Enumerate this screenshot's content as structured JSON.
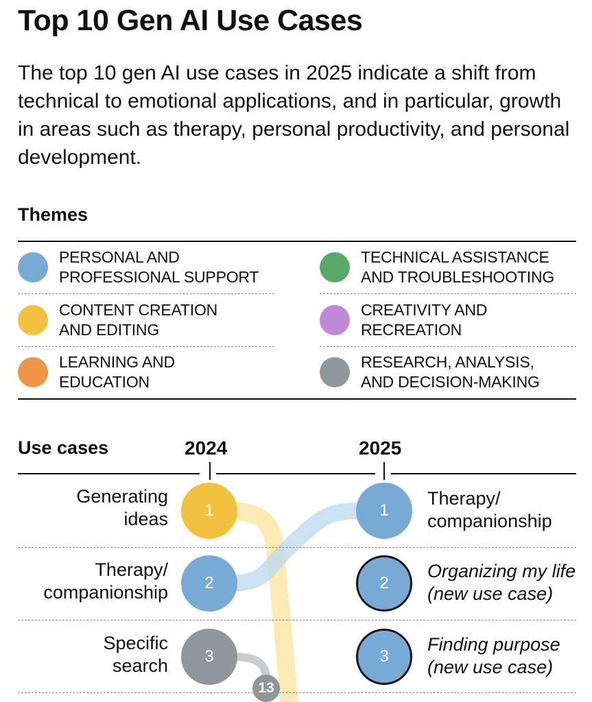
{
  "title": "Top 10 Gen AI Use Cases",
  "subtitle": "The top 10 gen AI use cases in 2025 indicate a shift from technical to emotional applications, and in particular, growth in areas such as therapy, personal productivity, and personal development.",
  "themes": {
    "heading": "Themes",
    "items": [
      {
        "label": "PERSONAL AND\nPROFESSIONAL SUPPORT",
        "color": "#77aad4"
      },
      {
        "label": "TECHNICAL ASSISTANCE\nAND TROUBLESHOOTING",
        "color": "#5aa96a"
      },
      {
        "label": "CONTENT CREATION\nAND EDITING",
        "color": "#f2c23e"
      },
      {
        "label": "CREATIVITY AND\nRECREATION",
        "color": "#c18ad9"
      },
      {
        "label": "LEARNING AND\nEDUCATION",
        "color": "#ef9547"
      },
      {
        "label": "RESEARCH, ANALYSIS,\nAND DECISION-MAKING",
        "color": "#8f979c"
      }
    ]
  },
  "use_cases": {
    "heading": "Use cases",
    "year_left": "2024",
    "year_right": "2025",
    "rows": [
      {
        "left": {
          "rank": "1",
          "label": "Generating\nideas",
          "color": "#f2c23e"
        },
        "right": {
          "rank": "1",
          "label": "Therapy/\ncompanionship",
          "color": "#77aad4",
          "new": false
        }
      },
      {
        "left": {
          "rank": "2",
          "label": "Therapy/\ncompanionship",
          "color": "#77aad4"
        },
        "right": {
          "rank": "2",
          "label": "Organizing my life\n(new use case)",
          "color": "#77aad4",
          "new": true
        }
      },
      {
        "left": {
          "rank": "3",
          "label": "Specific\nsearch",
          "color": "#8f979c"
        },
        "right": {
          "rank": "3",
          "label": "Finding purpose\n(new use case)",
          "color": "#77aad4",
          "new": true
        }
      }
    ],
    "moved_badge": {
      "rank": "13",
      "color": "#8f979c"
    }
  }
}
